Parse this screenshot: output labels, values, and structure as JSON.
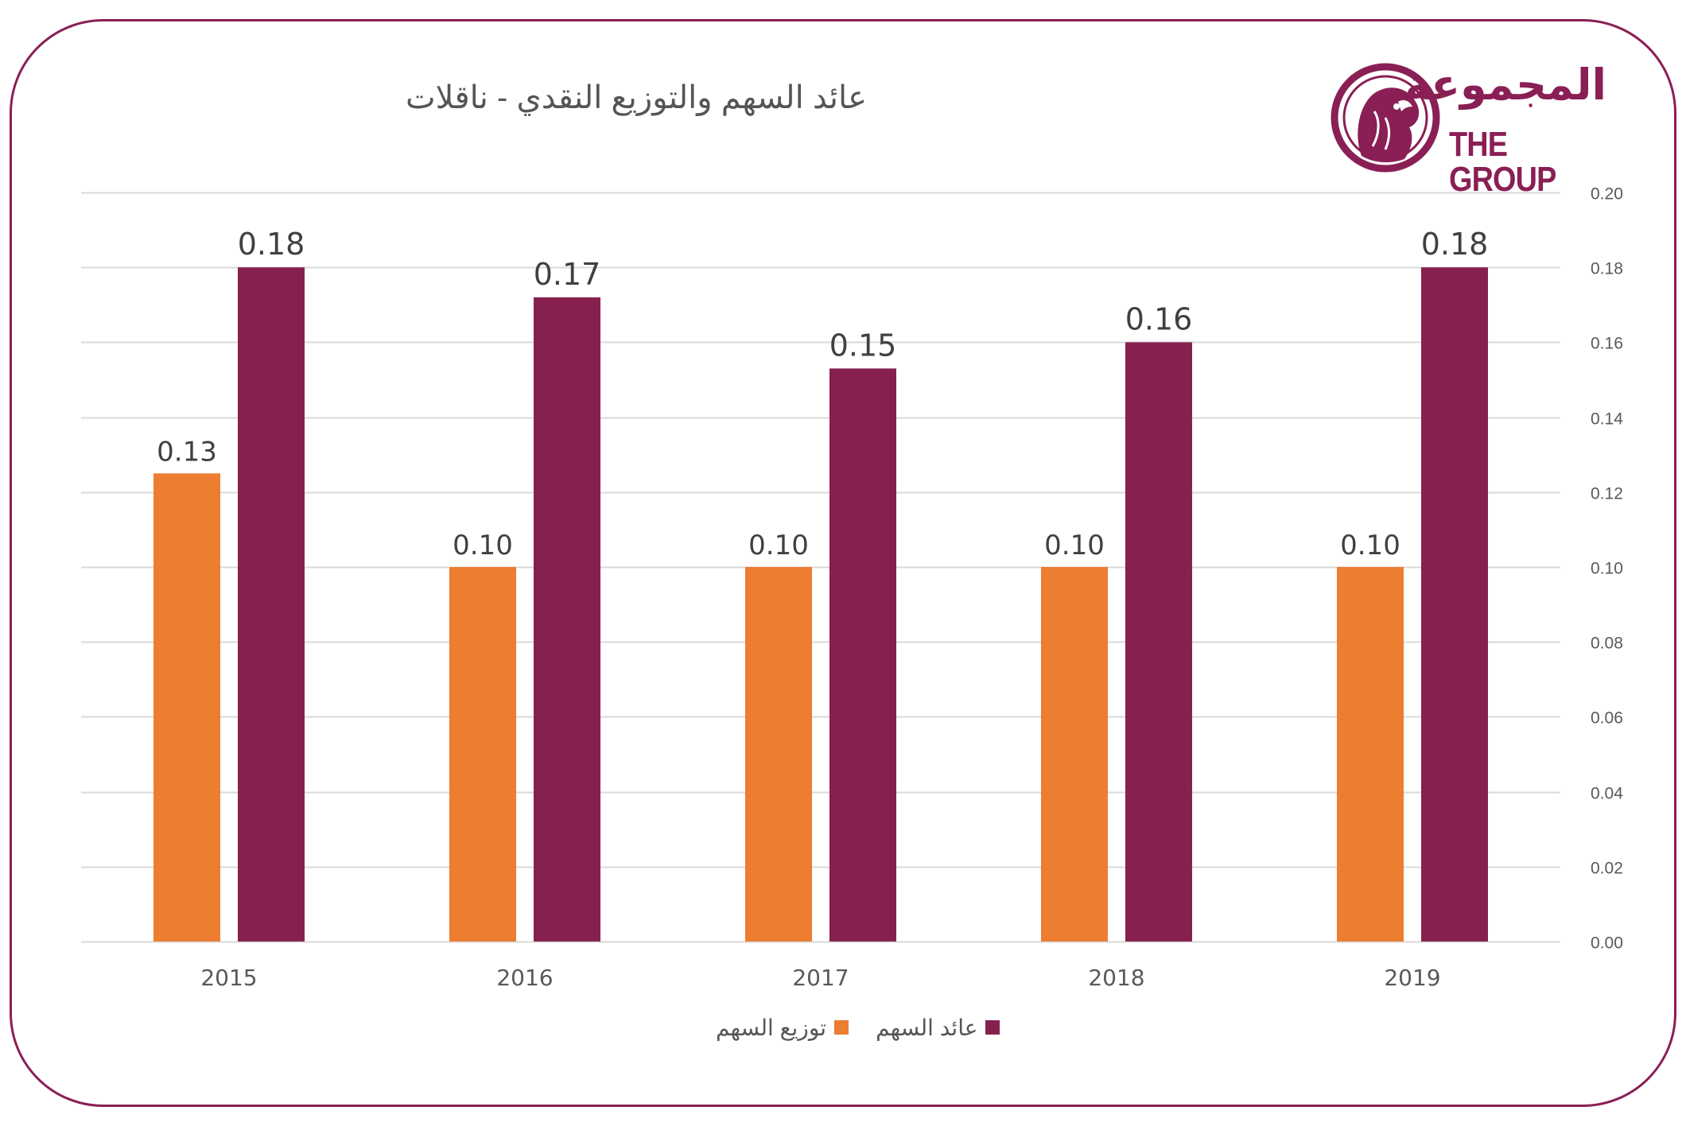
{
  "logo": {
    "name_ar": "المجموعة",
    "name_en": "THE GROUP"
  },
  "chart_data": {
    "type": "bar",
    "title": "عائد السهم والتوزيع النقدي - ناقلات",
    "categories": [
      "2015",
      "2016",
      "2017",
      "2018",
      "2019"
    ],
    "series": [
      {
        "name": "توزيع السهم",
        "color": "#ed7d31",
        "values": [
          0.125,
          0.1,
          0.1,
          0.1,
          0.1
        ],
        "labels": [
          "0.13",
          "0.10",
          "0.10",
          "0.10",
          "0.10"
        ]
      },
      {
        "name": "عائد السهم",
        "color": "#86204f",
        "values": [
          0.18,
          0.172,
          0.153,
          0.16,
          0.18
        ],
        "labels": [
          "0.18",
          "0.17",
          "0.15",
          "0.16",
          "0.18"
        ]
      }
    ],
    "ylim": [
      0,
      0.2
    ],
    "yticks": [
      "0.00",
      "0.02",
      "0.04",
      "0.06",
      "0.08",
      "0.10",
      "0.12",
      "0.14",
      "0.16",
      "0.18",
      "0.20"
    ],
    "y_axis_side": "right",
    "grid": true,
    "legend_position": "bottom"
  }
}
